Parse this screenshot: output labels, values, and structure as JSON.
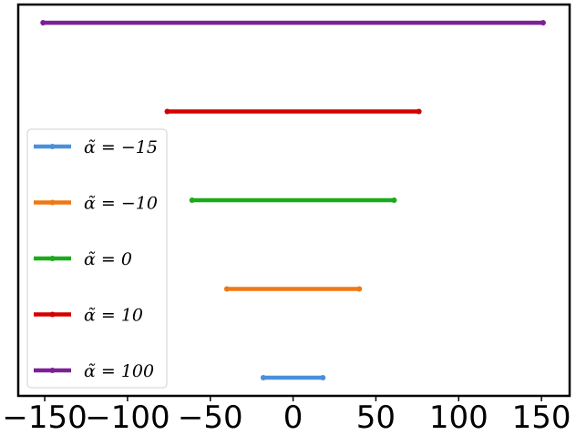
{
  "chart_data": {
    "type": "interval",
    "title": "",
    "xlabel": "",
    "ylabel": "",
    "xlim": [
      -166,
      167
    ],
    "xticks": [
      -150,
      -100,
      -50,
      0,
      50,
      100,
      150
    ],
    "xtick_labels": [
      "−150",
      "−100",
      "−50",
      "0",
      "50",
      "100",
      "150"
    ],
    "y_ticks_shown": false,
    "grid": false,
    "legend_position": "left",
    "series": [
      {
        "name": "α̃ = −15",
        "color": "#4a90d9",
        "start": -18,
        "end": 18
      },
      {
        "name": "α̃ = −10",
        "color": "#f07814",
        "start": -40,
        "end": 40
      },
      {
        "name": "α̃ = 0",
        "color": "#1aab1a",
        "start": -61,
        "end": 61
      },
      {
        "name": "α̃ = 10",
        "color": "#d40000",
        "start": -76,
        "end": 76
      },
      {
        "name": "α̃ = 100",
        "color": "#7b2096",
        "start": -151,
        "end": 151
      }
    ]
  }
}
